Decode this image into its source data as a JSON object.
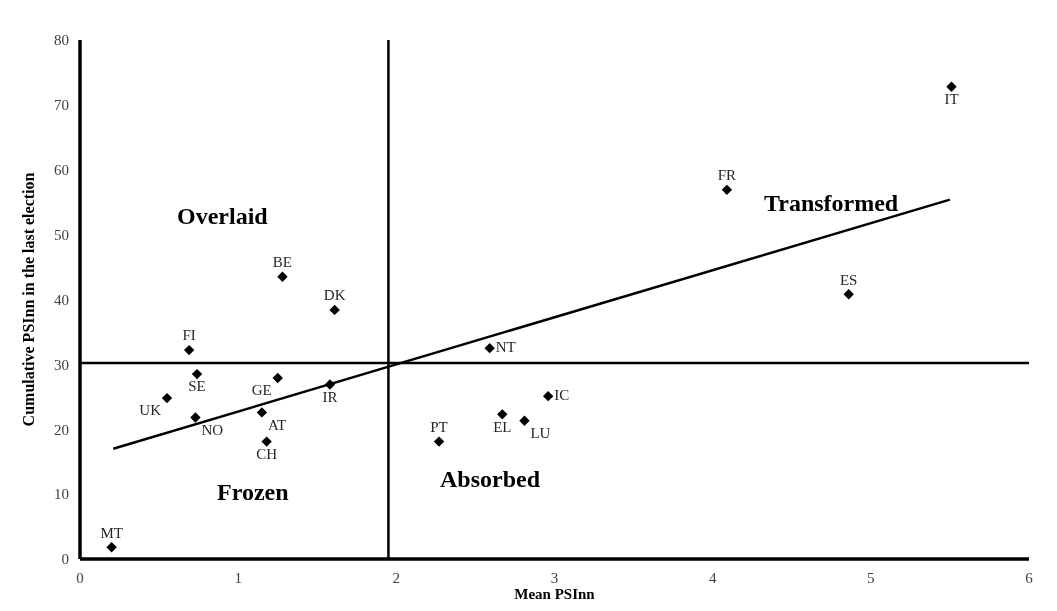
{
  "chart_data": {
    "type": "scatter",
    "xlabel": "Mean PSInn",
    "ylabel": "Cumulative PSInn in the last election",
    "xlim": [
      0,
      6
    ],
    "xticks": [
      0,
      1,
      2,
      3,
      4,
      5,
      6
    ],
    "ylim": [
      0,
      80
    ],
    "yticks": [
      0,
      10,
      20,
      30,
      40,
      50,
      60,
      70,
      80
    ],
    "legend": false,
    "marker": "diamond",
    "series": [
      {
        "type": "line",
        "color": "#000000",
        "marker": "none",
        "x": [
          0.21,
          5.5
        ],
        "values": [
          17.0,
          55.4
        ]
      },
      {
        "name": "MT",
        "color": "#000000",
        "x": [
          0.2
        ],
        "values": [
          1.8
        ]
      },
      {
        "name": "FI",
        "color": "#000000",
        "x": [
          0.69
        ],
        "values": [
          32.2
        ]
      },
      {
        "name": "SE",
        "color": "#000000",
        "x": [
          0.74
        ],
        "values": [
          28.5
        ]
      },
      {
        "name": "UK",
        "color": "#000000",
        "x": [
          0.55
        ],
        "values": [
          24.8
        ]
      },
      {
        "name": "NO",
        "color": "#000000",
        "x": [
          0.73
        ],
        "values": [
          21.8
        ]
      },
      {
        "name": "GE",
        "color": "#000000",
        "x": [
          1.25
        ],
        "values": [
          27.9
        ]
      },
      {
        "name": "AT",
        "color": "#000000",
        "x": [
          1.15
        ],
        "values": [
          22.6
        ]
      },
      {
        "name": "CH",
        "color": "#000000",
        "x": [
          1.18
        ],
        "values": [
          18.1
        ]
      },
      {
        "name": "IR",
        "color": "#000000",
        "x": [
          1.58
        ],
        "values": [
          26.9
        ]
      },
      {
        "name": "BE",
        "color": "#000000",
        "x": [
          1.28
        ],
        "values": [
          43.5
        ]
      },
      {
        "name": "DK",
        "color": "#000000",
        "x": [
          1.61
        ],
        "values": [
          38.4
        ]
      },
      {
        "name": "PT",
        "color": "#000000",
        "x": [
          2.27
        ],
        "values": [
          18.1
        ]
      },
      {
        "name": "NT",
        "color": "#000000",
        "x": [
          2.59
        ],
        "values": [
          32.5
        ]
      },
      {
        "name": "EL",
        "color": "#000000",
        "x": [
          2.67
        ],
        "values": [
          22.3
        ]
      },
      {
        "name": "LU",
        "color": "#000000",
        "x": [
          2.81
        ],
        "values": [
          21.3
        ]
      },
      {
        "name": "IC",
        "color": "#000000",
        "x": [
          2.96
        ],
        "values": [
          25.1
        ]
      },
      {
        "name": "FR",
        "color": "#000000",
        "x": [
          4.09
        ],
        "values": [
          56.9
        ]
      },
      {
        "name": "ES",
        "color": "#000000",
        "x": [
          4.86
        ],
        "values": [
          40.8
        ]
      },
      {
        "name": "IT",
        "color": "#000000",
        "x": [
          5.51
        ],
        "values": [
          72.8
        ]
      }
    ],
    "ref_lines": [
      {
        "axis": "x",
        "value": 1.95,
        "color": "#000000"
      },
      {
        "axis": "y",
        "value": 30.2,
        "color": "#000000"
      }
    ],
    "annotations": [
      "Overlaid",
      "Transformed",
      "Frozen",
      "Absorbed"
    ]
  }
}
